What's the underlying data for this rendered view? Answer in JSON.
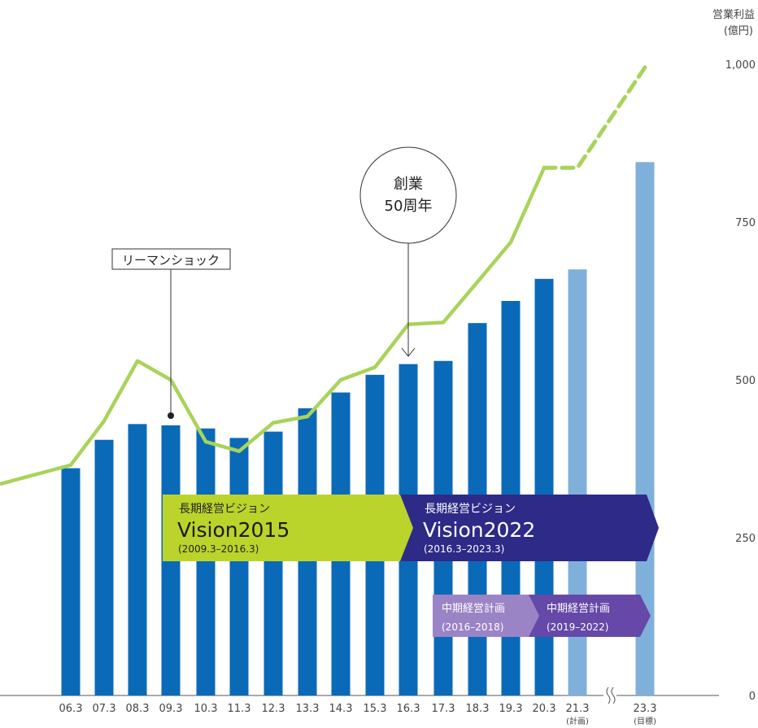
{
  "chart_data": {
    "type": "bar",
    "ylabel": "営業利益",
    "yunit": "(億円)",
    "ylim": [
      0,
      1000
    ],
    "yticks": [
      {
        "value": 0,
        "label": "0"
      },
      {
        "value": 250,
        "label": "250"
      },
      {
        "value": 500,
        "label": "500"
      },
      {
        "value": 750,
        "label": "750"
      },
      {
        "value": 1000,
        "label": "1,000"
      }
    ],
    "categories": [
      "06.3",
      "07.3",
      "08.3",
      "09.3",
      "10.3",
      "11.3",
      "12.3",
      "13.3",
      "14.3",
      "15.3",
      "16.3",
      "17.3",
      "18.3",
      "19.3",
      "20.3",
      "21.3",
      "23.3"
    ],
    "category_sublabels": [
      "",
      "",
      "",
      "",
      "",
      "",
      "",
      "",
      "",
      "",
      "",
      "",
      "",
      "",
      "",
      "(計画)",
      "(目標)"
    ],
    "bar_values": [
      360,
      405,
      430,
      428,
      423,
      408,
      418,
      455,
      480,
      508,
      525,
      530,
      590,
      625,
      660,
      675,
      845
    ],
    "bar_kind": [
      "actual",
      "actual",
      "actual",
      "actual",
      "actual",
      "actual",
      "actual",
      "actual",
      "actual",
      "actual",
      "actual",
      "actual",
      "actual",
      "actual",
      "actual",
      "plan",
      "plan"
    ],
    "line_values": [
      335,
      365,
      435,
      530,
      500,
      402,
      387,
      432,
      442,
      500,
      520,
      588,
      591,
      655,
      718,
      836,
      836,
      995
    ],
    "line_segment_style": [
      "solid",
      "solid",
      "solid",
      "solid",
      "solid",
      "solid",
      "solid",
      "solid",
      "solid",
      "solid",
      "solid",
      "solid",
      "solid",
      "solid",
      "solid",
      "dashed",
      "dashed"
    ],
    "colors": {
      "bar_actual": "#0a6ab8",
      "bar_plan": "#7fb0da",
      "line": "#a9d35a",
      "vision2015": "#bad42b",
      "vision2022": "#2e2a87",
      "midterm1": "#9b84c6",
      "midterm2": "#6548a8"
    },
    "annotations": {
      "lehman": "リーマンショック",
      "anniversary_line1": "創業",
      "anniversary_line2": "50周年"
    },
    "plans": {
      "vision2015": {
        "heading": "長期経営ビジョン",
        "title": "Vision2015",
        "period": "(2009.3–2016.3)"
      },
      "vision2022": {
        "heading": "長期経営ビジョン",
        "title": "Vision2022",
        "period": "(2016.3–2023.3)"
      },
      "midterm1": {
        "heading": "中期経営計画",
        "period": "(2016–2018)"
      },
      "midterm2": {
        "heading": "中期経営計画",
        "period": "(2019–2022)"
      }
    }
  }
}
